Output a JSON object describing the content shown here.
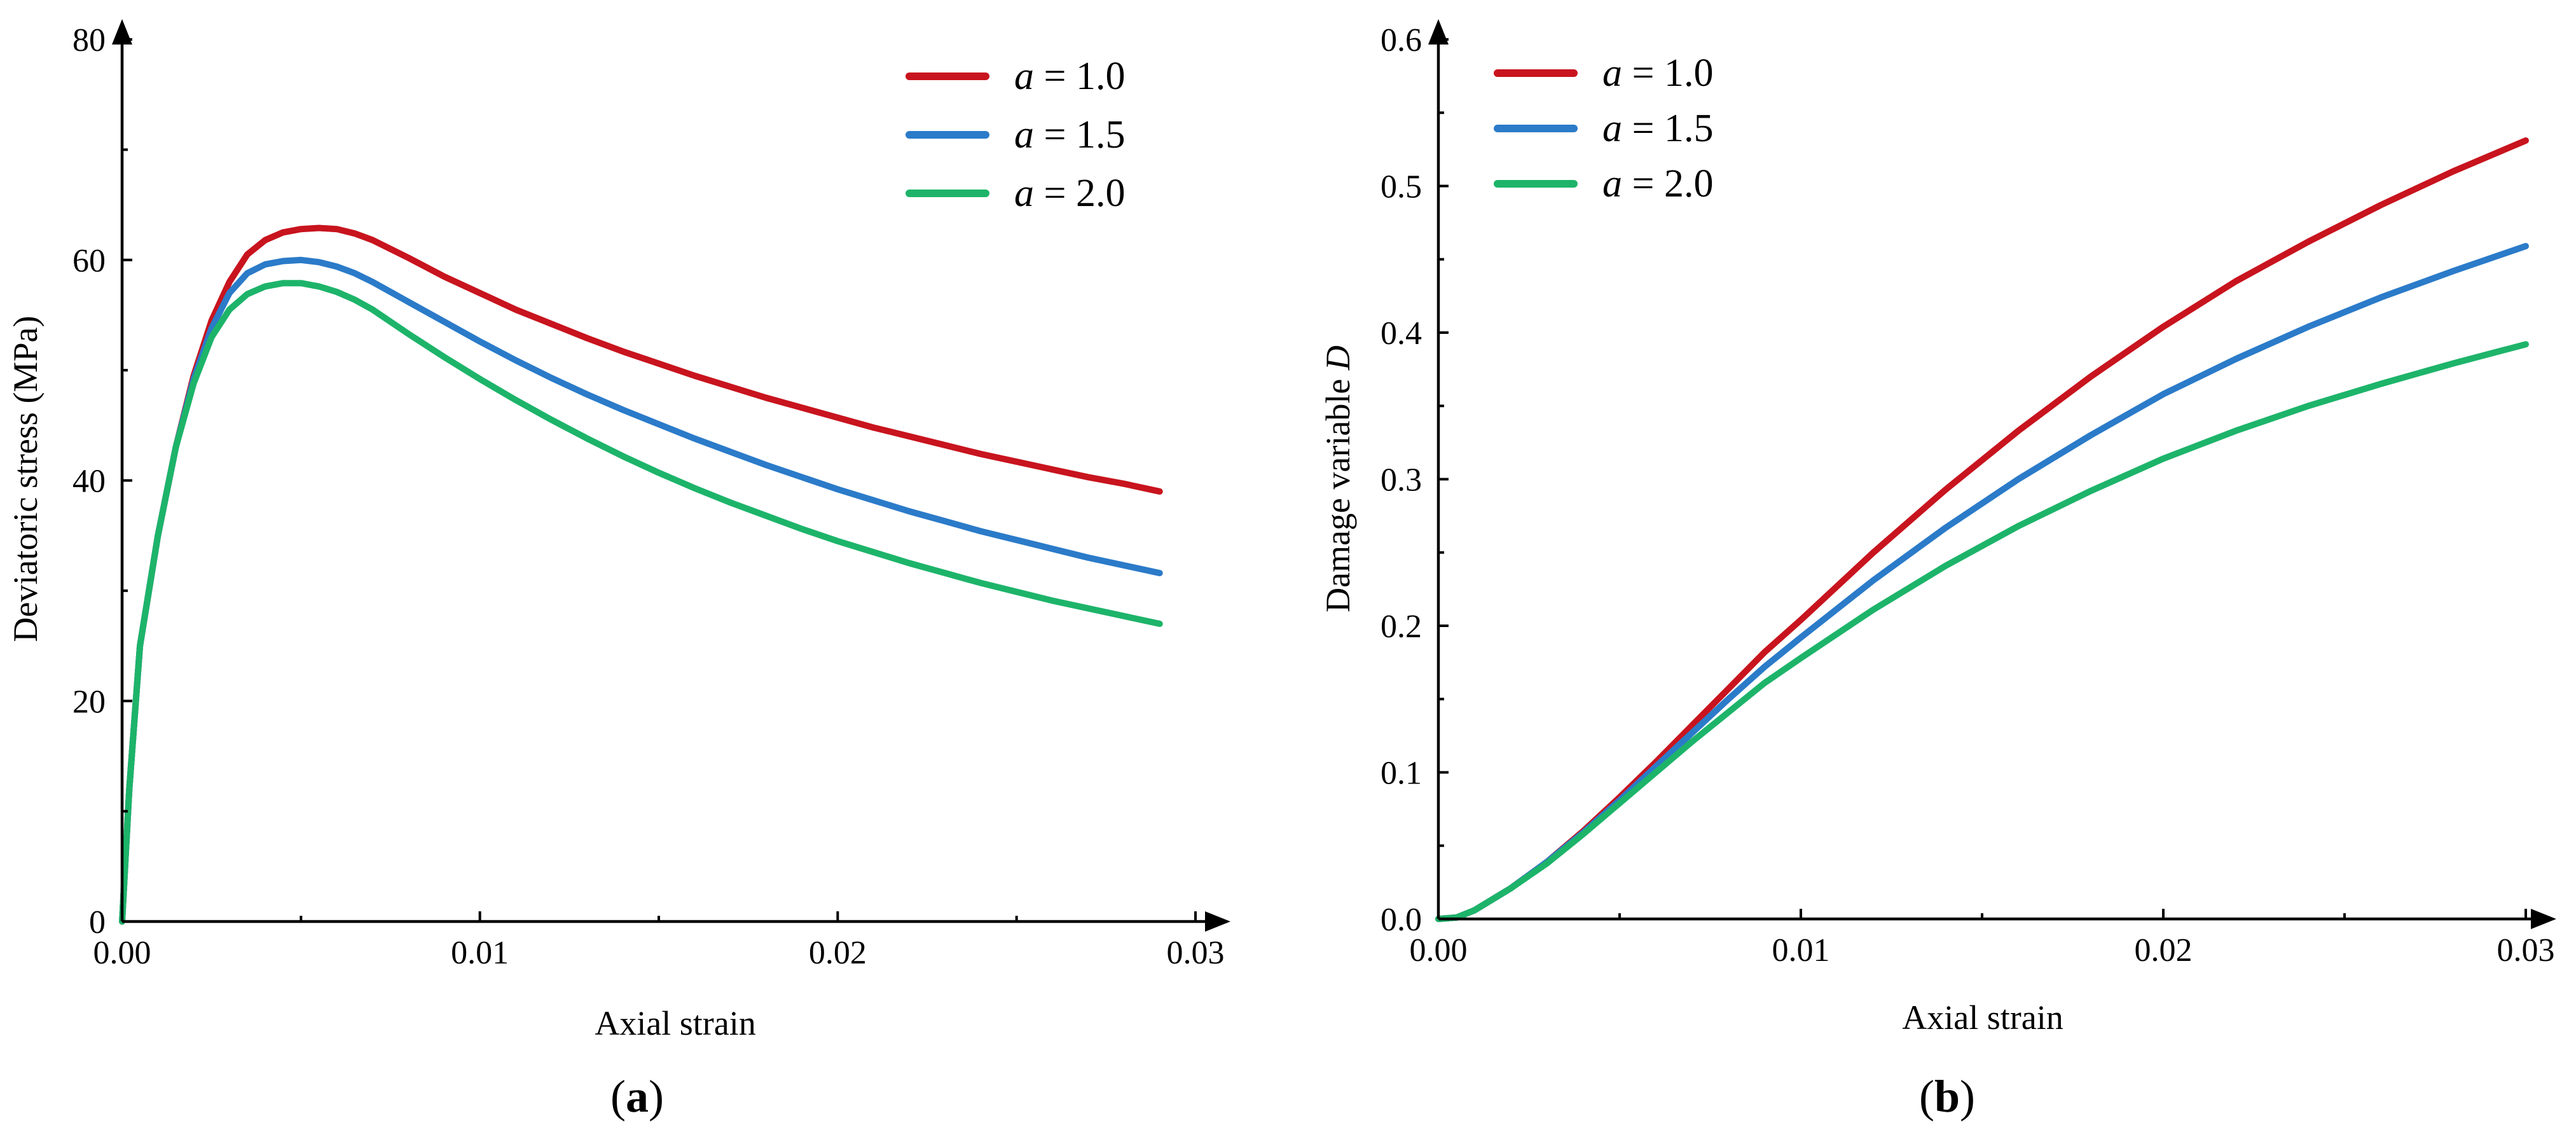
{
  "figure_labels": {
    "a": "a",
    "b": "b"
  },
  "colors": {
    "series_red": "#C8141E",
    "series_blue": "#2B7BC9",
    "series_green": "#1DB46A"
  },
  "chart_data": [
    {
      "id": "a",
      "type": "line",
      "title": "",
      "xlabel": "Axial strain",
      "ylabel": "Deviatoric stress (MPa)",
      "xlim": [
        0,
        0.03
      ],
      "ylim": [
        0,
        80
      ],
      "xticks": [
        0,
        0.01,
        0.02,
        0.03
      ],
      "xtick_labels": [
        "0.00",
        "0.01",
        "0.02",
        "0.03"
      ],
      "yticks": [
        0,
        20,
        40,
        60,
        80
      ],
      "ytick_labels": [
        "0",
        "20",
        "40",
        "60",
        "80"
      ],
      "legend_position": "top-right",
      "grid": false,
      "series": [
        {
          "name": "a = 1.0",
          "legend_var": "a",
          "legend_value": "= 1.0",
          "color": "#C8141E",
          "x": [
            0,
            0.0002,
            0.0005,
            0.001,
            0.0015,
            0.002,
            0.0025,
            0.003,
            0.0035,
            0.004,
            0.0045,
            0.005,
            0.0055,
            0.006,
            0.0065,
            0.007,
            0.008,
            0.009,
            0.01,
            0.011,
            0.012,
            0.013,
            0.014,
            0.015,
            0.016,
            0.017,
            0.018,
            0.019,
            0.02,
            0.021,
            0.022,
            0.023,
            0.024,
            0.025,
            0.026,
            0.027,
            0.028,
            0.029
          ],
          "y": [
            0,
            12,
            25,
            35,
            43,
            49.5,
            54.5,
            58,
            60.5,
            61.8,
            62.5,
            62.8,
            62.9,
            62.8,
            62.4,
            61.8,
            60.2,
            58.5,
            57.0,
            55.5,
            54.2,
            52.9,
            51.7,
            50.6,
            49.5,
            48.5,
            47.5,
            46.6,
            45.7,
            44.8,
            44.0,
            43.2,
            42.4,
            41.7,
            41.0,
            40.3,
            39.7,
            39.0
          ]
        },
        {
          "name": "a = 1.5",
          "legend_var": "a",
          "legend_value": "= 1.5",
          "color": "#2B7BC9",
          "x": [
            0,
            0.0002,
            0.0005,
            0.001,
            0.0015,
            0.002,
            0.0025,
            0.003,
            0.0035,
            0.004,
            0.0045,
            0.005,
            0.0055,
            0.006,
            0.0065,
            0.007,
            0.008,
            0.009,
            0.01,
            0.011,
            0.012,
            0.013,
            0.014,
            0.015,
            0.016,
            0.017,
            0.018,
            0.019,
            0.02,
            0.021,
            0.022,
            0.023,
            0.024,
            0.025,
            0.026,
            0.027,
            0.028,
            0.029
          ],
          "y": [
            0,
            12,
            25,
            35,
            43,
            49.2,
            53.8,
            57,
            58.8,
            59.6,
            59.9,
            60.0,
            59.8,
            59.4,
            58.8,
            58.0,
            56.2,
            54.4,
            52.6,
            50.9,
            49.3,
            47.8,
            46.4,
            45.1,
            43.8,
            42.6,
            41.4,
            40.3,
            39.2,
            38.2,
            37.2,
            36.3,
            35.4,
            34.6,
            33.8,
            33.0,
            32.3,
            31.6
          ]
        },
        {
          "name": "a = 2.0",
          "legend_var": "a",
          "legend_value": "= 2.0",
          "color": "#1DB46A",
          "x": [
            0,
            0.0002,
            0.0005,
            0.001,
            0.0015,
            0.002,
            0.0025,
            0.003,
            0.0035,
            0.004,
            0.0045,
            0.005,
            0.0055,
            0.006,
            0.0065,
            0.007,
            0.008,
            0.009,
            0.01,
            0.011,
            0.012,
            0.013,
            0.014,
            0.015,
            0.016,
            0.017,
            0.018,
            0.019,
            0.02,
            0.021,
            0.022,
            0.023,
            0.024,
            0.025,
            0.026,
            0.027,
            0.028,
            0.029
          ],
          "y": [
            0,
            12,
            25,
            35,
            43,
            48.8,
            53,
            55.5,
            56.9,
            57.6,
            57.9,
            57.9,
            57.6,
            57.1,
            56.4,
            55.5,
            53.3,
            51.2,
            49.2,
            47.3,
            45.5,
            43.8,
            42.2,
            40.7,
            39.3,
            38.0,
            36.8,
            35.6,
            34.5,
            33.5,
            32.5,
            31.6,
            30.7,
            29.9,
            29.1,
            28.4,
            27.7,
            27.0
          ]
        }
      ]
    },
    {
      "id": "b",
      "type": "line",
      "title": "",
      "xlabel": "Axial strain",
      "ylabel": "Damage variable",
      "ylabel_var": "D",
      "xlim": [
        0,
        0.03
      ],
      "ylim": [
        0,
        0.6
      ],
      "xticks": [
        0,
        0.01,
        0.02,
        0.03
      ],
      "xtick_labels": [
        "0.00",
        "0.01",
        "0.02",
        "0.03"
      ],
      "yticks": [
        0,
        0.1,
        0.2,
        0.3,
        0.4,
        0.5,
        0.6
      ],
      "ytick_labels": [
        "0.0",
        "0.1",
        "0.2",
        "0.3",
        "0.4",
        "0.5",
        "0.6"
      ],
      "legend_position": "top-left",
      "grid": false,
      "series": [
        {
          "name": "a = 1.0",
          "legend_var": "a",
          "legend_value": "= 1.0",
          "color": "#C8141E",
          "x": [
            0,
            0.0005,
            0.001,
            0.002,
            0.003,
            0.004,
            0.005,
            0.006,
            0.007,
            0.008,
            0.009,
            0.01,
            0.012,
            0.014,
            0.016,
            0.018,
            0.02,
            0.022,
            0.024,
            0.026,
            0.028,
            0.03
          ],
          "y": [
            0,
            0.001,
            0.006,
            0.021,
            0.039,
            0.06,
            0.083,
            0.107,
            0.132,
            0.157,
            0.182,
            0.204,
            0.25,
            0.293,
            0.333,
            0.37,
            0.404,
            0.435,
            0.462,
            0.487,
            0.51,
            0.531
          ]
        },
        {
          "name": "a = 1.5",
          "legend_var": "a",
          "legend_value": "= 1.5",
          "color": "#2B7BC9",
          "x": [
            0,
            0.0005,
            0.001,
            0.002,
            0.003,
            0.004,
            0.005,
            0.006,
            0.007,
            0.008,
            0.009,
            0.01,
            0.012,
            0.014,
            0.016,
            0.018,
            0.02,
            0.022,
            0.024,
            0.026,
            0.028,
            0.03
          ],
          "y": [
            0,
            0.001,
            0.006,
            0.021,
            0.039,
            0.059,
            0.081,
            0.104,
            0.127,
            0.15,
            0.172,
            0.192,
            0.231,
            0.267,
            0.3,
            0.33,
            0.358,
            0.382,
            0.404,
            0.424,
            0.442,
            0.459
          ]
        },
        {
          "name": "a = 2.0",
          "legend_var": "a",
          "legend_value": "= 2.0",
          "color": "#1DB46A",
          "x": [
            0,
            0.0005,
            0.001,
            0.002,
            0.003,
            0.004,
            0.005,
            0.006,
            0.007,
            0.008,
            0.009,
            0.01,
            0.012,
            0.014,
            0.016,
            0.018,
            0.02,
            0.022,
            0.024,
            0.026,
            0.028,
            0.03
          ],
          "y": [
            0,
            0.001,
            0.006,
            0.021,
            0.038,
            0.058,
            0.079,
            0.1,
            0.121,
            0.141,
            0.161,
            0.178,
            0.211,
            0.241,
            0.268,
            0.292,
            0.314,
            0.333,
            0.35,
            0.365,
            0.379,
            0.392
          ]
        }
      ]
    }
  ]
}
